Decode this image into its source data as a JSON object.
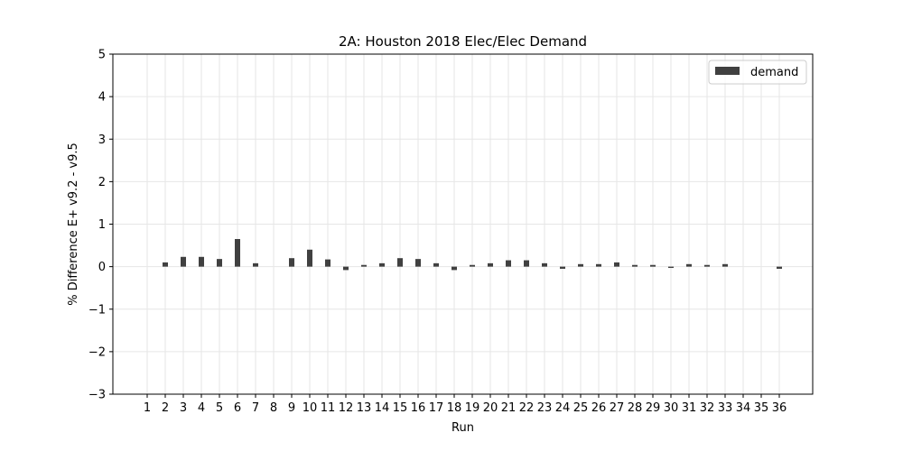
{
  "chart_data": {
    "type": "bar",
    "title": "2A: Houston 2018 Elec/Elec Demand",
    "xlabel": "Run",
    "ylabel": "% Difference E+ v9.2 - v9.5",
    "ylim": [
      -3,
      5
    ],
    "yticks": [
      -3,
      -2,
      -1,
      0,
      1,
      2,
      3,
      4,
      5
    ],
    "ytick_labels": [
      "−3",
      "−2",
      "−1",
      "0",
      "1",
      "2",
      "3",
      "4",
      "5"
    ],
    "categories": [
      "1",
      "2",
      "3",
      "4",
      "5",
      "6",
      "7",
      "8",
      "9",
      "10",
      "11",
      "12",
      "13",
      "14",
      "15",
      "16",
      "17",
      "18",
      "19",
      "20",
      "21",
      "22",
      "23",
      "24",
      "25",
      "26",
      "27",
      "28",
      "29",
      "30",
      "31",
      "32",
      "33",
      "34",
      "35",
      "36"
    ],
    "series": [
      {
        "name": "demand",
        "color": "#404040",
        "values": [
          0,
          0.1,
          0.23,
          0.23,
          0.18,
          0.65,
          0.08,
          0,
          0.2,
          0.4,
          0.17,
          -0.08,
          0.04,
          0.08,
          0.2,
          0.18,
          0.08,
          -0.08,
          0.04,
          0.08,
          0.15,
          0.15,
          0.08,
          -0.05,
          0.06,
          0.06,
          0.1,
          0.04,
          0.04,
          -0.03,
          0.06,
          0.04,
          0.06,
          0,
          0,
          -0.05
        ]
      }
    ],
    "grid": true,
    "legend": "top-right"
  }
}
